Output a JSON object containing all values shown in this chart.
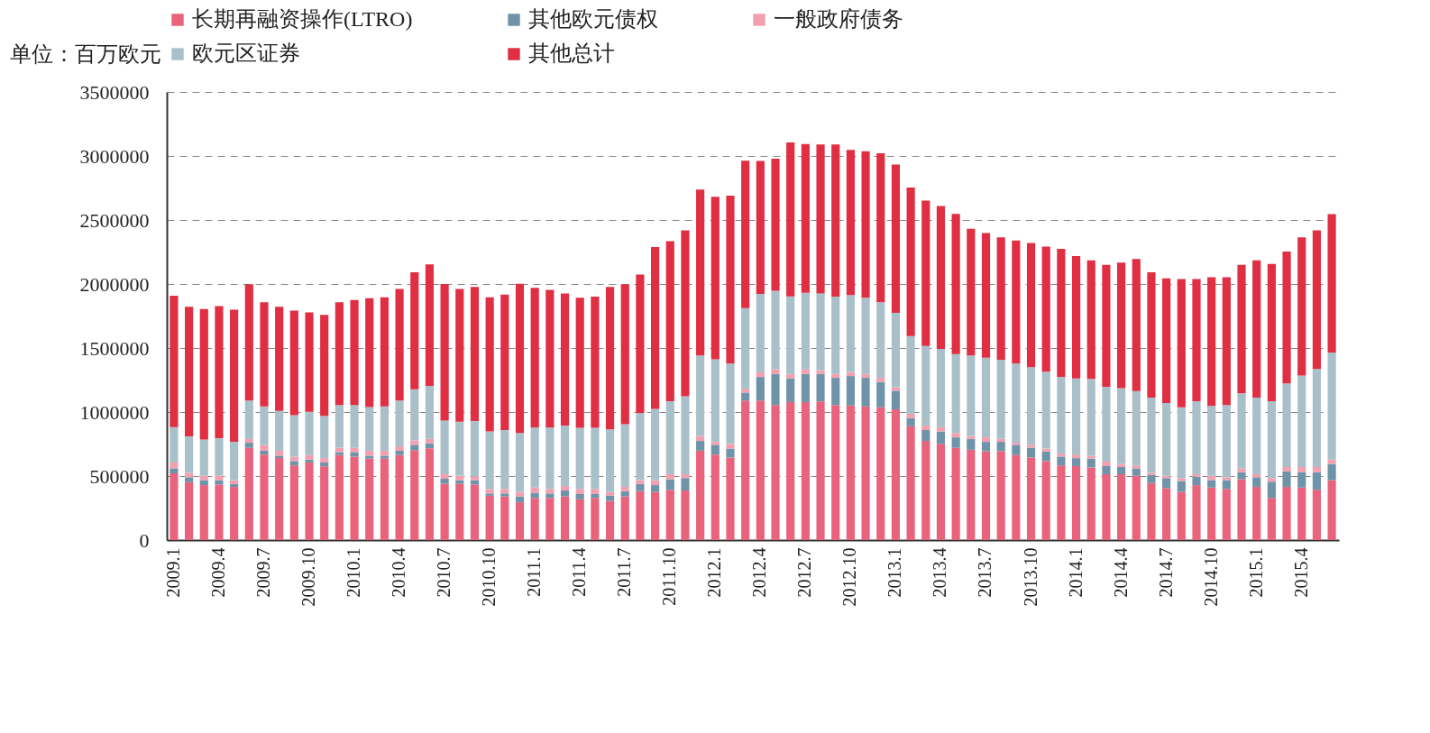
{
  "chart_data": {
    "type": "bar",
    "stacked": true,
    "ylabel": "单位：百万欧元",
    "legend": "top",
    "grid": "y",
    "categories": [
      "2009.1",
      null,
      null,
      "2009.4",
      null,
      null,
      "2009.7",
      null,
      null,
      "2009.10",
      null,
      null,
      "2010.1",
      null,
      null,
      "2010.4",
      null,
      null,
      "2010.7",
      null,
      null,
      "2010.10",
      null,
      null,
      "2011.1",
      null,
      null,
      "2011.4",
      null,
      null,
      "2011.7",
      null,
      null,
      "2011.10",
      null,
      null,
      "2012.1",
      null,
      null,
      "2012.4",
      null,
      null,
      "2012.7",
      null,
      null,
      "2012.10",
      null,
      null,
      "2013.1",
      null,
      null,
      "2013.4",
      null,
      null,
      "2013.7",
      null,
      null,
      "2013.10",
      null,
      null,
      "2014.1",
      null,
      null,
      "2014.4",
      null,
      null,
      "2014.7",
      null,
      null,
      "2014.10",
      null,
      null,
      "2015.1",
      null,
      null,
      "2015.4",
      null,
      null
    ],
    "ylim": [
      0,
      3500000
    ],
    "yticks": [
      0,
      500000,
      1000000,
      1500000,
      2000000,
      2500000,
      3000000,
      3500000
    ],
    "series": [
      {
        "name": "长期再融资操作(LTRO)",
        "color": "#e8637b",
        "values": [
          521000,
          452000,
          429000,
          433000,
          415000,
          721000,
          668000,
          640000,
          583000,
          606000,
          576000,
          664000,
          652000,
          636000,
          636000,
          664000,
          703000,
          717000,
          440000,
          440000,
          433000,
          346000,
          341000,
          295000,
          329000,
          329000,
          341000,
          318000,
          329000,
          306000,
          341000,
          382000,
          376000,
          392000,
          387000,
          698000,
          668000,
          645000,
          1090000,
          1090000,
          1055000,
          1078000,
          1078000,
          1083000,
          1055000,
          1051000,
          1044000,
          1037000,
          1021000,
          889000,
          774000,
          751000,
          721000,
          705000,
          694000,
          694000,
          664000,
          645000,
          617000,
          583000,
          578000,
          567000,
          514000,
          514000,
          502000,
          445000,
          406000,
          376000,
          429000,
          410000,
          399000,
          475000,
          415000,
          329000,
          415000,
          410000,
          392000,
          468000
        ]
      },
      {
        "name": "其他欧元债权",
        "color": "#6f93a8",
        "values": [
          39000,
          39000,
          39000,
          35000,
          23000,
          39000,
          30000,
          19000,
          34000,
          23000,
          30000,
          23000,
          35000,
          23000,
          23000,
          34000,
          41000,
          39000,
          39000,
          28000,
          35000,
          18000,
          23000,
          46000,
          40000,
          35000,
          46000,
          41000,
          30000,
          40000,
          41000,
          56000,
          53000,
          83000,
          97000,
          76000,
          76000,
          69000,
          62000,
          184000,
          242000,
          185000,
          219000,
          214000,
          212000,
          230000,
          223000,
          198000,
          145000,
          63000,
          85000,
          97000,
          81000,
          85000,
          73000,
          73000,
          80000,
          76000,
          74000,
          69000,
          62000,
          69000,
          64000,
          57000,
          58000,
          62000,
          78000,
          85000,
          66000,
          58000,
          69000,
          55000,
          76000,
          127000,
          122000,
          120000,
          138000,
          126000
        ]
      },
      {
        "name": "一般政府债务",
        "color": "#f2a0b0",
        "values": [
          46000,
          34000,
          34000,
          34000,
          30000,
          30000,
          46000,
          39000,
          35000,
          35000,
          34000,
          34000,
          34000,
          39000,
          39000,
          35000,
          35000,
          34000,
          35000,
          34000,
          30000,
          35000,
          35000,
          35000,
          41000,
          35000,
          35000,
          40000,
          40000,
          30000,
          33000,
          30000,
          39000,
          39000,
          30000,
          39000,
          23000,
          37000,
          30000,
          35000,
          35000,
          34000,
          35000,
          30000,
          30000,
          32000,
          30000,
          32000,
          27000,
          34000,
          35000,
          34000,
          34000,
          23000,
          35000,
          23000,
          16000,
          23000,
          23000,
          23000,
          28000,
          23000,
          35000,
          23000,
          23000,
          18000,
          18000,
          23000,
          19000,
          34000,
          23000,
          30000,
          23000,
          28000,
          34000,
          41000,
          41000,
          35000
        ]
      },
      {
        "name": "欧元区证券",
        "color": "#a9c0ca",
        "values": [
          276000,
          284000,
          284000,
          293000,
          299000,
          300000,
          300000,
          311000,
          323000,
          338000,
          330000,
          334000,
          334000,
          341000,
          346000,
          357000,
          398000,
          415000,
          419000,
          422000,
          431000,
          449000,
          460000,
          460000,
          468000,
          479000,
          472000,
          477000,
          477000,
          488000,
          490000,
          523000,
          557000,
          571000,
          610000,
          629000,
          645000,
          627000,
          629000,
          613000,
          615000,
          606000,
          599000,
          599000,
          604000,
          600000,
          595000,
          590000,
          581000,
          608000,
          622000,
          611000,
          616000,
          629000,
          622000,
          618000,
          618000,
          606000,
          602000,
          599000,
          595000,
          599000,
          585000,
          593000,
          581000,
          588000,
          569000,
          553000,
          571000,
          546000,
          564000,
          587000,
          599000,
          601000,
          652000,
          715000,
          765000,
          836000
        ]
      },
      {
        "name": "其他总计",
        "color": "#e02e42",
        "values": [
          1026000,
          1013000,
          1018000,
          1032000,
          1032000,
          908000,
          813000,
          813000,
          818000,
          777000,
          788000,
          802000,
          820000,
          850000,
          852000,
          871000,
          915000,
          949000,
          1067000,
          1037000,
          1048000,
          1048000,
          1058000,
          1166000,
          1092000,
          1076000,
          1032000,
          1016000,
          1025000,
          1113000,
          1093000,
          1083000,
          1263000,
          1249000,
          1295000,
          1295000,
          1270000,
          1313000,
          1152000,
          1039000,
          1032000,
          1203000,
          1163000,
          1164000,
          1189000,
          1135000,
          1145000,
          1164000,
          1159000,
          1159000,
          1136000,
          1117000,
          1096000,
          989000,
          974000,
          956000,
          961000,
          970000,
          977000,
          1000000,
          956000,
          926000,
          952000,
          981000,
          1032000,
          979000,
          973000,
          1002000,
          954000,
          1005000,
          998000,
          1003000,
          1071000,
          1072000,
          1030000,
          1078000,
          1083000,
          1081000
        ]
      }
    ]
  }
}
